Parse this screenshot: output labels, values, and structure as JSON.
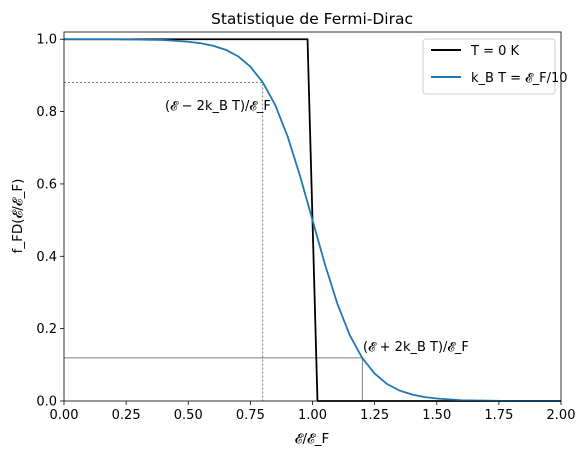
{
  "chart_data": {
    "type": "line",
    "title": "Statistique de Fermi-Dirac",
    "xlabel": "𝓔/𝓔_F",
    "ylabel": "f_FD(𝓔/𝓔_F)",
    "xlim": [
      0,
      2
    ],
    "ylim": [
      0,
      1.02
    ],
    "x_ticks": [
      "0.00",
      "0.25",
      "0.50",
      "0.75",
      "1.00",
      "1.25",
      "1.50",
      "1.75",
      "2.00"
    ],
    "y_ticks": [
      "0.0",
      "0.2",
      "0.4",
      "0.6",
      "0.8",
      "1.0"
    ],
    "grid": false,
    "legend_placement": "top-right",
    "series": [
      {
        "name": "T = 0 K",
        "color": "#000000",
        "x": [
          0.0,
          0.98,
          1.02,
          2.0
        ],
        "y": [
          1.0,
          1.0,
          0.0,
          0.0
        ]
      },
      {
        "name": "k_B T = 𝓔_F/10",
        "color": "#1f77b4",
        "x": [
          0.0,
          0.1,
          0.2,
          0.3,
          0.4,
          0.5,
          0.55,
          0.6,
          0.65,
          0.7,
          0.75,
          0.8,
          0.85,
          0.9,
          0.95,
          1.0,
          1.05,
          1.1,
          1.15,
          1.2,
          1.25,
          1.3,
          1.35,
          1.4,
          1.45,
          1.5,
          1.6,
          1.7,
          1.8,
          1.9,
          2.0
        ],
        "y": [
          1.0,
          1.0,
          1.0,
          0.999,
          0.998,
          0.993,
          0.989,
          0.982,
          0.971,
          0.953,
          0.924,
          0.881,
          0.818,
          0.731,
          0.622,
          0.5,
          0.378,
          0.269,
          0.182,
          0.119,
          0.076,
          0.047,
          0.029,
          0.018,
          0.011,
          0.007,
          0.002,
          0.001,
          0.0,
          0.0,
          0.0
        ]
      }
    ],
    "guide_lines": [
      {
        "x": 0.8,
        "y": 0.881,
        "style": "dashed",
        "color": "#000000"
      },
      {
        "x": 1.2,
        "y": 0.119,
        "style": "solid",
        "color": "#000000"
      }
    ],
    "annotations": [
      {
        "text": "(𝓔 − 2k_B T)/𝓔_F",
        "x": 0.4,
        "y": 0.8
      },
      {
        "text": "(𝓔 + 2k_B T)/𝓔_F",
        "x": 1.2,
        "y": 0.14
      }
    ]
  }
}
